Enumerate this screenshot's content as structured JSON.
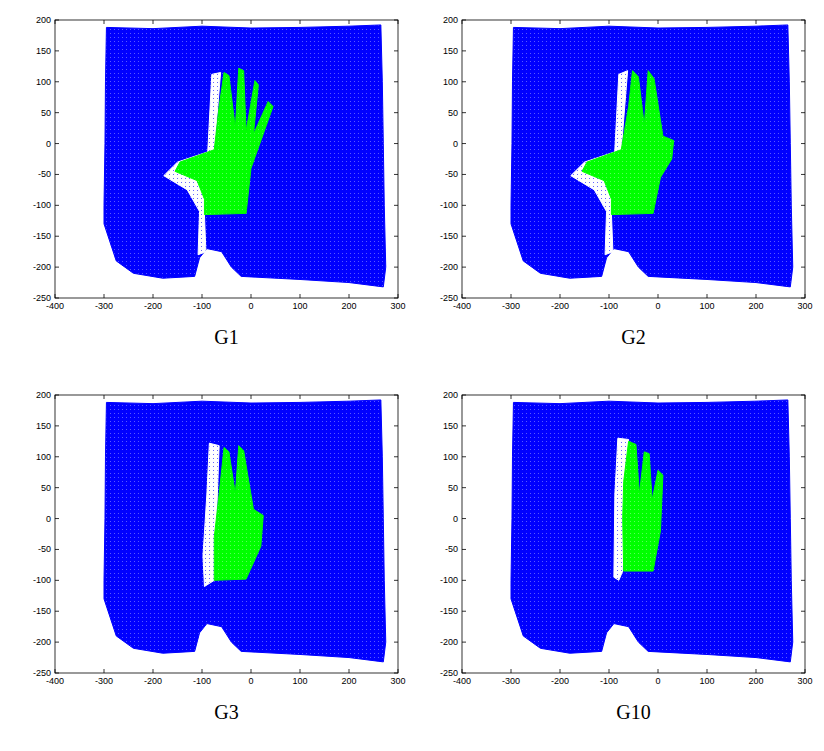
{
  "chart_data": [
    {
      "type": "scatter",
      "title": "G1",
      "xlim": [
        -400,
        300
      ],
      "ylim": [
        -250,
        200
      ],
      "xticks": [
        -400,
        -300,
        -200,
        -100,
        0,
        100,
        200,
        300
      ],
      "yticks": [
        -250,
        -200,
        -150,
        -100,
        -50,
        0,
        50,
        100,
        150,
        200
      ],
      "series": [
        {
          "type": "area",
          "color": "#0000ff",
          "x": [
            -295,
            -200,
            -100,
            0,
            100,
            200,
            265,
            268,
            270,
            272,
            275,
            270,
            200,
            100,
            -20,
            -40,
            -60,
            -90,
            -105,
            -115,
            -180,
            -240,
            -275,
            -300,
            -300,
            -298,
            -297
          ],
          "y": [
            188,
            186,
            190,
            187,
            188,
            190,
            192,
            100,
            0,
            -100,
            -200,
            -232,
            -225,
            -220,
            -215,
            -200,
            -175,
            -170,
            -185,
            -215,
            -218,
            -210,
            -190,
            -130,
            -100,
            0,
            100
          ]
        },
        {
          "type": "area",
          "color": "#ffffff",
          "x": [
            -80,
            -62,
            -75,
            -150,
            -178,
            -130,
            -105,
            -108,
            -92,
            -95
          ],
          "y": [
            112,
            115,
            -10,
            -30,
            -52,
            -75,
            -110,
            -180,
            -175,
            -115
          ]
        },
        {
          "type": "area",
          "color": "#00ff00",
          "x": [
            -95,
            -10,
            0,
            45,
            35,
            5,
            15,
            8,
            -10,
            -15,
            -25,
            -32,
            -45,
            -55,
            -65,
            -75,
            -145,
            -155,
            -110,
            -95
          ],
          "y": [
            -115,
            -113,
            -40,
            60,
            68,
            15,
            95,
            102,
            20,
            118,
            122,
            25,
            110,
            115,
            60,
            -10,
            -30,
            -45,
            -60,
            -90
          ]
        }
      ]
    },
    {
      "type": "scatter",
      "title": "G2",
      "xlim": [
        -400,
        300
      ],
      "ylim": [
        -250,
        200
      ],
      "xticks": [
        -400,
        -300,
        -200,
        -100,
        0,
        100,
        200,
        300
      ],
      "yticks": [
        -250,
        -200,
        -150,
        -100,
        -50,
        0,
        50,
        100,
        150,
        200
      ],
      "series": [
        {
          "type": "area",
          "color": "#0000ff",
          "x": [
            -295,
            -200,
            -100,
            0,
            100,
            200,
            265,
            268,
            270,
            272,
            275,
            270,
            200,
            100,
            -20,
            -40,
            -60,
            -90,
            -105,
            -115,
            -180,
            -240,
            -275,
            -300,
            -300,
            -298,
            -297
          ],
          "y": [
            188,
            186,
            190,
            187,
            188,
            190,
            192,
            100,
            0,
            -100,
            -200,
            -232,
            -225,
            -220,
            -215,
            -200,
            -175,
            -170,
            -185,
            -215,
            -218,
            -210,
            -190,
            -130,
            -100,
            0,
            100
          ]
        },
        {
          "type": "area",
          "color": "#ffffff",
          "x": [
            -80,
            -62,
            -75,
            -150,
            -178,
            -130,
            -105,
            -108,
            -92,
            -95
          ],
          "y": [
            112,
            118,
            -10,
            -30,
            -52,
            -75,
            -110,
            -180,
            -175,
            -115
          ]
        },
        {
          "type": "area",
          "color": "#00ff00",
          "x": [
            -95,
            -10,
            5,
            28,
            32,
            10,
            -8,
            -20,
            -28,
            -40,
            -52,
            -60,
            -75,
            -145,
            -155,
            -110,
            -95
          ],
          "y": [
            -115,
            -113,
            -55,
            -25,
            5,
            12,
            105,
            118,
            30,
            108,
            118,
            60,
            -10,
            -30,
            -45,
            -60,
            -90
          ]
        }
      ]
    },
    {
      "type": "scatter",
      "title": "G3",
      "xlim": [
        -400,
        300
      ],
      "ylim": [
        -250,
        200
      ],
      "xticks": [
        -400,
        -300,
        -200,
        -100,
        0,
        100,
        200,
        300
      ],
      "yticks": [
        -250,
        -200,
        -150,
        -100,
        -50,
        0,
        50,
        100,
        150,
        200
      ],
      "series": [
        {
          "type": "area",
          "color": "#0000ff",
          "x": [
            -295,
            -200,
            -100,
            0,
            100,
            200,
            265,
            268,
            270,
            272,
            275,
            270,
            200,
            100,
            -20,
            -40,
            -60,
            -90,
            -105,
            -115,
            -180,
            -240,
            -275,
            -300,
            -300,
            -298,
            -297
          ],
          "y": [
            188,
            186,
            190,
            187,
            188,
            190,
            192,
            100,
            0,
            -100,
            -200,
            -232,
            -225,
            -220,
            -215,
            -200,
            -175,
            -170,
            -185,
            -215,
            -218,
            -210,
            -190,
            -130,
            -100,
            0,
            100
          ]
        },
        {
          "type": "area",
          "color": "#ffffff",
          "x": [
            -85,
            -65,
            -75,
            -95,
            -98,
            -90
          ],
          "y": [
            122,
            118,
            -100,
            -110,
            -60,
            40
          ]
        },
        {
          "type": "area",
          "color": "#00ff00",
          "x": [
            -75,
            -10,
            20,
            25,
            5,
            -15,
            -25,
            -32,
            -45,
            -55,
            -65,
            -75
          ],
          "y": [
            -100,
            -98,
            -45,
            5,
            15,
            110,
            118,
            40,
            108,
            115,
            40,
            -30
          ]
        }
      ]
    },
    {
      "type": "scatter",
      "title": "G10",
      "xlim": [
        -400,
        300
      ],
      "ylim": [
        -250,
        200
      ],
      "xticks": [
        -400,
        -300,
        -200,
        -100,
        0,
        100,
        200,
        300
      ],
      "yticks": [
        -250,
        -200,
        -150,
        -100,
        -50,
        0,
        50,
        100,
        150,
        200
      ],
      "series": [
        {
          "type": "area",
          "color": "#0000ff",
          "x": [
            -295,
            -200,
            -100,
            0,
            100,
            200,
            265,
            268,
            270,
            272,
            275,
            270,
            200,
            100,
            -20,
            -40,
            -60,
            -90,
            -105,
            -115,
            -180,
            -240,
            -275,
            -300,
            -300,
            -298,
            -297
          ],
          "y": [
            188,
            186,
            190,
            187,
            188,
            190,
            192,
            100,
            0,
            -100,
            -200,
            -232,
            -225,
            -220,
            -215,
            -200,
            -175,
            -170,
            -185,
            -215,
            -218,
            -210,
            -190,
            -130,
            -100,
            0,
            100
          ]
        },
        {
          "type": "area",
          "color": "#ffffff",
          "x": [
            -82,
            -60,
            -72,
            -80,
            -90,
            -88
          ],
          "y": [
            130,
            128,
            -85,
            -100,
            -95,
            40
          ]
        },
        {
          "type": "area",
          "color": "#00ff00",
          "x": [
            -70,
            -10,
            5,
            10,
            0,
            -12,
            -18,
            -28,
            -38,
            -45,
            -60,
            -70,
            -72
          ],
          "y": [
            -85,
            -85,
            -20,
            70,
            78,
            30,
            105,
            108,
            40,
            120,
            125,
            60,
            0
          ]
        }
      ]
    }
  ]
}
